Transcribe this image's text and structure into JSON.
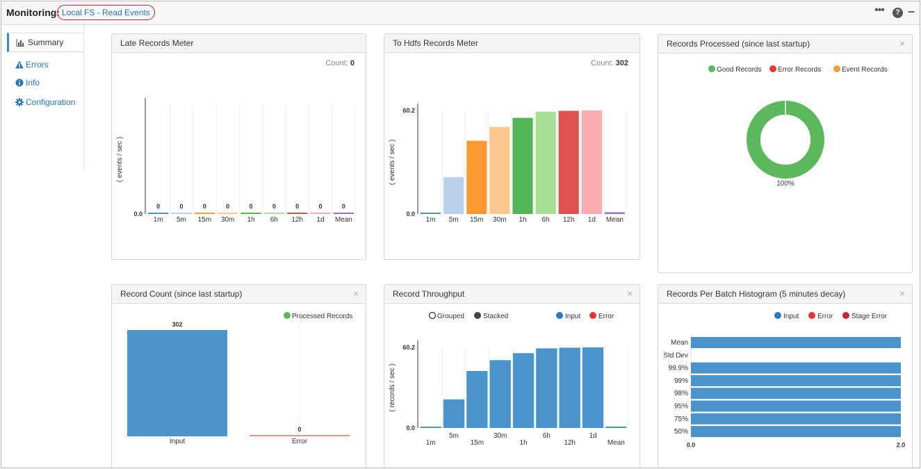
{
  "header": {
    "title": "Monitoring:",
    "pipeline": "Local FS - Read Events",
    "more_icon": "ellipsis-icon",
    "help_icon": "help-circle-icon",
    "minimize_icon": "minimize-icon"
  },
  "sidebar": {
    "items": [
      {
        "label": "Summary",
        "icon": "bar-chart-icon",
        "active": true
      },
      {
        "label": "Errors",
        "icon": "warning-icon",
        "active": false
      },
      {
        "label": "Info",
        "icon": "info-icon",
        "active": false
      },
      {
        "label": "Configuration",
        "icon": "gear-icon",
        "active": false
      }
    ]
  },
  "panels": {
    "late": {
      "title": "Late Records Meter",
      "count_label": "Count:",
      "count_value": "0"
    },
    "hdfs": {
      "title": "To Hdfs Records Meter",
      "count_label": "Count:",
      "count_value": "302"
    },
    "processed": {
      "title": "Records Processed (since last startup)",
      "close": "×"
    },
    "record_count": {
      "title": "Record Count (since last startup)",
      "close": "×"
    },
    "throughput": {
      "title": "Record Throughput",
      "close": "×"
    },
    "histogram": {
      "title": "Records Per Batch Histogram (5 minutes decay)",
      "close": "×"
    }
  },
  "colors": {
    "blue": "#4a93cb",
    "meter": [
      "#4a93cb",
      "#b9d2ec",
      "#fc9933",
      "#fdc88f",
      "#53b553",
      "#a6df96",
      "#df5151",
      "#fcacac",
      "#9a6fcc"
    ]
  },
  "chart_data": [
    {
      "type": "bar",
      "title": "Late Records Meter",
      "ylabel": "( events / sec )",
      "categories": [
        "1m",
        "5m",
        "15m",
        "30m",
        "1h",
        "6h",
        "12h",
        "1d",
        "Mean"
      ],
      "values": [
        0,
        0,
        0,
        0,
        0,
        0,
        0,
        0,
        0
      ],
      "value_labels": [
        "0",
        "0",
        "0",
        "0",
        "0",
        "0",
        "0",
        "0",
        "0"
      ],
      "y_ticks": [
        "0.0"
      ],
      "ylim": [
        0,
        1
      ]
    },
    {
      "type": "bar",
      "title": "To Hdfs Records Meter",
      "ylabel": "( events / sec )",
      "categories": [
        "1m",
        "5m",
        "15m",
        "30m",
        "1h",
        "6h",
        "12h",
        "1d",
        "Mean"
      ],
      "values": [
        0.4,
        21.4,
        42.6,
        50.7,
        55.9,
        59.5,
        60.0,
        60.2,
        1.0
      ],
      "y_ticks": [
        "0.0",
        "60.2"
      ],
      "ylim": [
        0,
        60.2
      ]
    },
    {
      "type": "pie",
      "title": "Records Processed (since last startup)",
      "legend": [
        "Good Records",
        "Error Records",
        "Event Records"
      ],
      "legend_colors": [
        "#5cb85c",
        "#e93434",
        "#f49a3b"
      ],
      "values": [
        100,
        0,
        0
      ],
      "label": "100%"
    },
    {
      "type": "bar",
      "title": "Record Count (since last startup)",
      "legend": [
        "Processed Records"
      ],
      "legend_colors": [
        "#5cb85c"
      ],
      "categories": [
        "Input",
        "Error"
      ],
      "values": [
        302,
        0
      ],
      "value_labels": [
        "302",
        "0"
      ],
      "ylim": [
        0,
        302
      ]
    },
    {
      "type": "bar",
      "title": "Record Throughput",
      "ylabel": "( records / sec )",
      "options": [
        "Grouped",
        "Stacked"
      ],
      "legend": [
        "Input",
        "Error"
      ],
      "legend_colors": [
        "#2b7bbd",
        "#e93434"
      ],
      "categories": [
        "1m",
        "5m",
        "15m",
        "30m",
        "1h",
        "6h",
        "12h",
        "1d",
        "Mean"
      ],
      "values": [
        0.3,
        21.4,
        42.6,
        50.7,
        55.9,
        59.5,
        60.0,
        60.2,
        1.0
      ],
      "y_ticks": [
        "0.0",
        "60.2"
      ],
      "ylim": [
        0,
        60.2
      ]
    },
    {
      "type": "bar",
      "orientation": "horizontal",
      "title": "Records Per Batch Histogram (5 minutes decay)",
      "legend": [
        "Input",
        "Error",
        "Stage Error"
      ],
      "legend_colors": [
        "#2b7bbd",
        "#e93434",
        "#c62828"
      ],
      "categories": [
        "Mean",
        "Std Dev",
        "99.9%",
        "99%",
        "98%",
        "95%",
        "75%",
        "50%"
      ],
      "values": [
        2.0,
        0.0,
        2.0,
        2.0,
        2.0,
        2.0,
        2.0,
        2.0
      ],
      "x_ticks": [
        "0.0",
        "2.0"
      ],
      "xlim": [
        0,
        2.0
      ]
    }
  ]
}
